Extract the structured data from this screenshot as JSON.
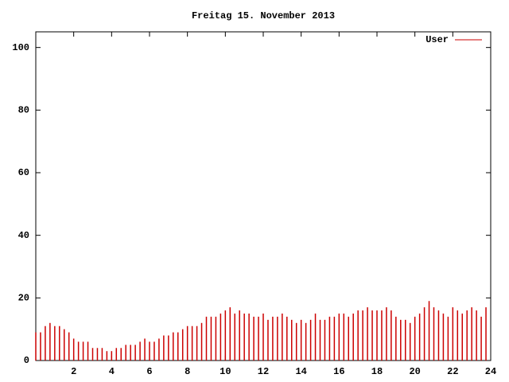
{
  "chart_data": {
    "type": "impulse",
    "title": "Freitag 15. November 2013",
    "x": [
      0,
      0.25,
      0.5,
      0.75,
      1,
      1.25,
      1.5,
      1.75,
      2,
      2.25,
      2.5,
      2.75,
      3,
      3.25,
      3.5,
      3.75,
      4,
      4.25,
      4.5,
      4.75,
      5,
      5.25,
      5.5,
      5.75,
      6,
      6.25,
      6.5,
      6.75,
      7,
      7.25,
      7.5,
      7.75,
      8,
      8.25,
      8.5,
      8.75,
      9,
      9.25,
      9.5,
      9.75,
      10,
      10.25,
      10.5,
      10.75,
      11,
      11.25,
      11.5,
      11.75,
      12,
      12.25,
      12.5,
      12.75,
      13,
      13.25,
      13.5,
      13.75,
      14,
      14.25,
      14.5,
      14.75,
      15,
      15.25,
      15.5,
      15.75,
      16,
      16.25,
      16.5,
      16.75,
      17,
      17.25,
      17.5,
      17.75,
      18,
      18.25,
      18.5,
      18.75,
      19,
      19.25,
      19.5,
      19.75,
      20,
      20.25,
      20.5,
      20.75,
      21,
      21.25,
      21.5,
      21.75,
      22,
      22.25,
      22.5,
      22.75,
      23,
      23.25,
      23.5,
      23.75
    ],
    "series": [
      {
        "name": "User",
        "color": "#cc0000",
        "values": [
          9,
          9,
          11,
          12,
          11,
          11,
          10,
          9,
          7,
          6,
          6,
          6,
          4,
          4,
          4,
          3,
          3,
          4,
          4,
          5,
          5,
          5,
          6,
          7,
          6,
          6,
          7,
          8,
          8,
          9,
          9,
          10,
          11,
          11,
          11,
          12,
          14,
          14,
          14,
          15,
          16,
          17,
          15,
          16,
          15,
          15,
          14,
          14,
          15,
          13,
          14,
          14,
          15,
          14,
          13,
          12,
          13,
          12,
          13,
          15,
          13,
          13,
          14,
          14,
          15,
          15,
          14,
          15,
          16,
          16,
          17,
          16,
          16,
          16,
          17,
          16,
          14,
          13,
          13,
          12,
          14,
          15,
          17,
          19,
          17,
          16,
          15,
          14,
          17,
          16,
          15,
          16,
          17,
          16,
          14,
          17
        ]
      }
    ],
    "xlim": [
      0,
      24
    ],
    "xticks": [
      2,
      4,
      6,
      8,
      10,
      12,
      14,
      16,
      18,
      20,
      22,
      24
    ],
    "ylim": [
      0,
      105
    ],
    "yticks": [
      0,
      20,
      40,
      60,
      80,
      100
    ],
    "legend": "top-right"
  }
}
